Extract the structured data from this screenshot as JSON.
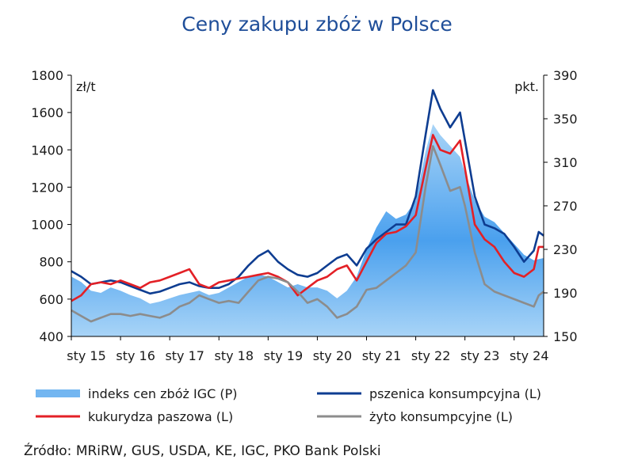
{
  "title": "Ceny zakupu zbóż w Polsce",
  "source": "Źródło: MRiRW, GUS, USDA, KE, IGC, PKO Bank Polski",
  "colors": {
    "title": "#1f4e99",
    "igc": "#5aa9ee",
    "wheat": "#0e3d91",
    "corn": "#e32026",
    "rye": "#8c8c8c"
  },
  "chart_data": {
    "type": "line",
    "x_tick_labels": [
      "sty 15",
      "sty 16",
      "sty 17",
      "sty 18",
      "sty 19",
      "sty 20",
      "sty 21",
      "sty 22",
      "sty 23",
      "sty 24"
    ],
    "y_left": {
      "unit": "zł/t",
      "min": 400,
      "max": 1800,
      "ticks": [
        400,
        600,
        800,
        1000,
        1200,
        1400,
        1600,
        1800
      ]
    },
    "y_right": {
      "unit": "pkt.",
      "min": 150,
      "max": 390,
      "ticks": [
        150,
        190,
        230,
        270,
        310,
        350,
        390
      ]
    },
    "x_range": [
      2015.0,
      2024.6
    ],
    "legend": "bottom",
    "series": [
      {
        "name": "indeks cen zbóż IGC (P)",
        "axis": "right",
        "style": "area",
        "points": [
          [
            2015.0,
            205
          ],
          [
            2015.2,
            200
          ],
          [
            2015.4,
            192
          ],
          [
            2015.6,
            190
          ],
          [
            2015.8,
            195
          ],
          [
            2016.0,
            192
          ],
          [
            2016.2,
            188
          ],
          [
            2016.4,
            185
          ],
          [
            2016.6,
            180
          ],
          [
            2016.8,
            182
          ],
          [
            2017.0,
            185
          ],
          [
            2017.2,
            188
          ],
          [
            2017.4,
            190
          ],
          [
            2017.6,
            192
          ],
          [
            2017.8,
            188
          ],
          [
            2018.0,
            190
          ],
          [
            2018.2,
            195
          ],
          [
            2018.4,
            200
          ],
          [
            2018.6,
            205
          ],
          [
            2018.8,
            207
          ],
          [
            2019.0,
            205
          ],
          [
            2019.2,
            200
          ],
          [
            2019.4,
            195
          ],
          [
            2019.6,
            198
          ],
          [
            2019.8,
            195
          ],
          [
            2020.0,
            195
          ],
          [
            2020.2,
            192
          ],
          [
            2020.4,
            185
          ],
          [
            2020.6,
            192
          ],
          [
            2020.8,
            205
          ],
          [
            2021.0,
            230
          ],
          [
            2021.2,
            250
          ],
          [
            2021.4,
            265
          ],
          [
            2021.6,
            258
          ],
          [
            2021.8,
            262
          ],
          [
            2022.0,
            275
          ],
          [
            2022.2,
            320
          ],
          [
            2022.35,
            345
          ],
          [
            2022.5,
            335
          ],
          [
            2022.7,
            325
          ],
          [
            2022.9,
            315
          ],
          [
            2023.0,
            300
          ],
          [
            2023.2,
            275
          ],
          [
            2023.4,
            260
          ],
          [
            2023.6,
            255
          ],
          [
            2023.8,
            245
          ],
          [
            2024.0,
            235
          ],
          [
            2024.2,
            225
          ],
          [
            2024.4,
            220
          ],
          [
            2024.6,
            222
          ]
        ]
      },
      {
        "name": "pszenica konsumpcyjna (L)",
        "axis": "left",
        "style": "line",
        "points": [
          [
            2015.0,
            750
          ],
          [
            2015.2,
            720
          ],
          [
            2015.4,
            680
          ],
          [
            2015.6,
            690
          ],
          [
            2015.8,
            700
          ],
          [
            2016.0,
            690
          ],
          [
            2016.2,
            670
          ],
          [
            2016.4,
            650
          ],
          [
            2016.6,
            630
          ],
          [
            2016.8,
            640
          ],
          [
            2017.0,
            660
          ],
          [
            2017.2,
            680
          ],
          [
            2017.4,
            690
          ],
          [
            2017.6,
            670
          ],
          [
            2017.8,
            660
          ],
          [
            2018.0,
            660
          ],
          [
            2018.2,
            680
          ],
          [
            2018.4,
            720
          ],
          [
            2018.6,
            780
          ],
          [
            2018.8,
            830
          ],
          [
            2019.0,
            860
          ],
          [
            2019.2,
            800
          ],
          [
            2019.4,
            760
          ],
          [
            2019.6,
            730
          ],
          [
            2019.8,
            720
          ],
          [
            2020.0,
            740
          ],
          [
            2020.2,
            780
          ],
          [
            2020.4,
            820
          ],
          [
            2020.6,
            840
          ],
          [
            2020.8,
            780
          ],
          [
            2021.0,
            870
          ],
          [
            2021.2,
            920
          ],
          [
            2021.4,
            960
          ],
          [
            2021.6,
            1000
          ],
          [
            2021.8,
            1000
          ],
          [
            2022.0,
            1150
          ],
          [
            2022.2,
            1480
          ],
          [
            2022.35,
            1720
          ],
          [
            2022.5,
            1620
          ],
          [
            2022.7,
            1520
          ],
          [
            2022.9,
            1600
          ],
          [
            2023.0,
            1450
          ],
          [
            2023.2,
            1150
          ],
          [
            2023.4,
            1000
          ],
          [
            2023.6,
            980
          ],
          [
            2023.8,
            950
          ],
          [
            2024.0,
            880
          ],
          [
            2024.2,
            800
          ],
          [
            2024.4,
            860
          ],
          [
            2024.5,
            960
          ],
          [
            2024.6,
            940
          ]
        ]
      },
      {
        "name": "kukurydza paszowa (L)",
        "axis": "left",
        "style": "line",
        "points": [
          [
            2015.0,
            590
          ],
          [
            2015.2,
            620
          ],
          [
            2015.4,
            680
          ],
          [
            2015.6,
            690
          ],
          [
            2015.8,
            680
          ],
          [
            2016.0,
            700
          ],
          [
            2016.2,
            680
          ],
          [
            2016.4,
            660
          ],
          [
            2016.6,
            690
          ],
          [
            2016.8,
            700
          ],
          [
            2017.0,
            720
          ],
          [
            2017.2,
            740
          ],
          [
            2017.4,
            760
          ],
          [
            2017.6,
            680
          ],
          [
            2017.8,
            660
          ],
          [
            2018.0,
            690
          ],
          [
            2018.2,
            700
          ],
          [
            2018.4,
            710
          ],
          [
            2018.6,
            720
          ],
          [
            2018.8,
            730
          ],
          [
            2019.0,
            740
          ],
          [
            2019.2,
            720
          ],
          [
            2019.4,
            690
          ],
          [
            2019.6,
            620
          ],
          [
            2019.8,
            660
          ],
          [
            2020.0,
            700
          ],
          [
            2020.2,
            720
          ],
          [
            2020.4,
            760
          ],
          [
            2020.6,
            780
          ],
          [
            2020.8,
            700
          ],
          [
            2021.0,
            800
          ],
          [
            2021.2,
            900
          ],
          [
            2021.4,
            950
          ],
          [
            2021.6,
            960
          ],
          [
            2021.8,
            990
          ],
          [
            2022.0,
            1050
          ],
          [
            2022.2,
            1300
          ],
          [
            2022.35,
            1480
          ],
          [
            2022.5,
            1400
          ],
          [
            2022.7,
            1380
          ],
          [
            2022.9,
            1450
          ],
          [
            2023.0,
            1300
          ],
          [
            2023.2,
            1000
          ],
          [
            2023.4,
            920
          ],
          [
            2023.6,
            880
          ],
          [
            2023.8,
            800
          ],
          [
            2024.0,
            740
          ],
          [
            2024.2,
            720
          ],
          [
            2024.4,
            760
          ],
          [
            2024.5,
            880
          ],
          [
            2024.6,
            880
          ]
        ]
      },
      {
        "name": "żyto konsumpcyjne (L)",
        "axis": "left",
        "style": "line",
        "points": [
          [
            2015.0,
            540
          ],
          [
            2015.2,
            510
          ],
          [
            2015.4,
            480
          ],
          [
            2015.6,
            500
          ],
          [
            2015.8,
            520
          ],
          [
            2016.0,
            520
          ],
          [
            2016.2,
            510
          ],
          [
            2016.4,
            520
          ],
          [
            2016.6,
            510
          ],
          [
            2016.8,
            500
          ],
          [
            2017.0,
            520
          ],
          [
            2017.2,
            560
          ],
          [
            2017.4,
            580
          ],
          [
            2017.6,
            620
          ],
          [
            2017.8,
            600
          ],
          [
            2018.0,
            580
          ],
          [
            2018.2,
            590
          ],
          [
            2018.4,
            580
          ],
          [
            2018.6,
            640
          ],
          [
            2018.8,
            700
          ],
          [
            2019.0,
            720
          ],
          [
            2019.2,
            710
          ],
          [
            2019.4,
            690
          ],
          [
            2019.6,
            640
          ],
          [
            2019.8,
            580
          ],
          [
            2020.0,
            600
          ],
          [
            2020.2,
            560
          ],
          [
            2020.4,
            500
          ],
          [
            2020.6,
            520
          ],
          [
            2020.8,
            560
          ],
          [
            2021.0,
            650
          ],
          [
            2021.2,
            660
          ],
          [
            2021.4,
            700
          ],
          [
            2021.6,
            740
          ],
          [
            2021.8,
            780
          ],
          [
            2022.0,
            850
          ],
          [
            2022.2,
            1200
          ],
          [
            2022.35,
            1420
          ],
          [
            2022.5,
            1320
          ],
          [
            2022.7,
            1180
          ],
          [
            2022.9,
            1200
          ],
          [
            2023.0,
            1100
          ],
          [
            2023.2,
            850
          ],
          [
            2023.4,
            680
          ],
          [
            2023.6,
            640
          ],
          [
            2023.8,
            620
          ],
          [
            2024.0,
            600
          ],
          [
            2024.2,
            580
          ],
          [
            2024.4,
            560
          ],
          [
            2024.5,
            620
          ],
          [
            2024.6,
            640
          ]
        ]
      }
    ]
  }
}
